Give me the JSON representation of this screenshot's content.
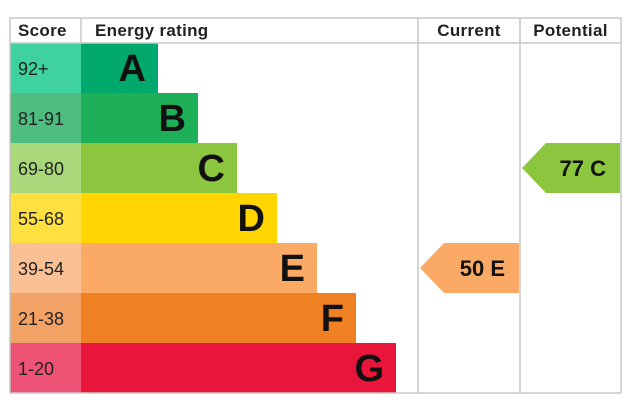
{
  "chart_data": {
    "type": "table",
    "headers": {
      "score": "Score",
      "rating": "Energy rating",
      "current": "Current",
      "potential": "Potential"
    },
    "bands": [
      {
        "score": "92+",
        "letter": "A",
        "color": "#00a86b",
        "score_color": "#3fd29e"
      },
      {
        "score": "81-91",
        "letter": "B",
        "color": "#1db058",
        "score_color": "#4ebd7f"
      },
      {
        "score": "69-80",
        "letter": "C",
        "color": "#8cc63f",
        "score_color": "#a8d87a"
      },
      {
        "score": "55-68",
        "letter": "D",
        "color": "#ffd500",
        "score_color": "#ffe040"
      },
      {
        "score": "39-54",
        "letter": "E",
        "color": "#fbaa65",
        "score_color": "#fcc095"
      },
      {
        "score": "21-38",
        "letter": "F",
        "color": "#ef8123",
        "score_color": "#f3a265"
      },
      {
        "score": "1-20",
        "letter": "G",
        "color": "#e9153b",
        "score_color": "#ee5274"
      }
    ],
    "current": {
      "value": 50,
      "letter": "E",
      "label": "50 E",
      "color": "#fbaa65"
    },
    "potential": {
      "value": 77,
      "letter": "C",
      "label": "77 C",
      "color": "#8cc63f"
    }
  }
}
